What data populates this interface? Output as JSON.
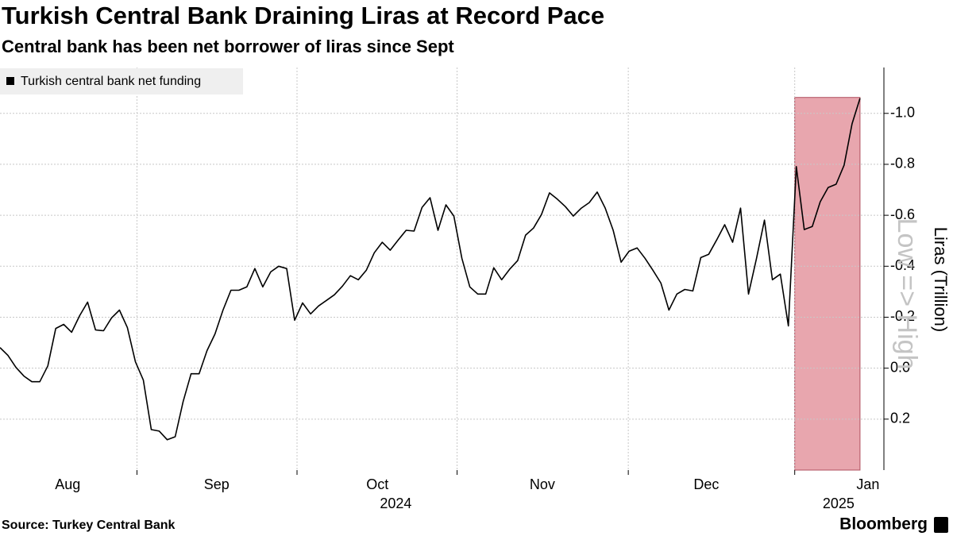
{
  "chart_data": {
    "type": "line",
    "title": "Turkish Central Bank Draining Liras at Record Pace",
    "subtitle": "Central bank has been net borrower of liras since Sept",
    "y_label": "Liras (Trillion)",
    "annotation": "Low => High",
    "source": "Source: Turkey Central Bank",
    "brand": "Bloomberg",
    "series": [
      {
        "name": "Turkish central bank net funding",
        "color": "#000000",
        "values": [
          -0.081,
          -0.05,
          -0.003,
          0.031,
          0.053,
          0.053,
          -0.009,
          -0.156,
          -0.172,
          -0.141,
          -0.206,
          -0.259,
          -0.15,
          -0.147,
          -0.197,
          -0.228,
          -0.159,
          -0.025,
          0.047,
          0.241,
          0.247,
          0.281,
          0.269,
          0.131,
          0.022,
          0.022,
          -0.069,
          -0.134,
          -0.228,
          -0.306,
          -0.306,
          -0.319,
          -0.391,
          -0.319,
          -0.378,
          -0.4,
          -0.391,
          -0.188,
          -0.256,
          -0.213,
          -0.244,
          -0.266,
          -0.288,
          -0.322,
          -0.363,
          -0.347,
          -0.384,
          -0.453,
          -0.494,
          -0.463,
          -0.503,
          -0.541,
          -0.538,
          -0.631,
          -0.669,
          -0.541,
          -0.641,
          -0.597,
          -0.431,
          -0.319,
          -0.291,
          -0.291,
          -0.394,
          -0.347,
          -0.388,
          -0.422,
          -0.522,
          -0.55,
          -0.603,
          -0.688,
          -0.663,
          -0.634,
          -0.597,
          -0.628,
          -0.65,
          -0.691,
          -0.628,
          -0.541,
          -0.416,
          -0.459,
          -0.472,
          -0.431,
          -0.384,
          -0.334,
          -0.228,
          -0.291,
          -0.309,
          -0.303,
          -0.434,
          -0.447,
          -0.503,
          -0.563,
          -0.494,
          -0.628,
          -0.291,
          -0.431,
          -0.581,
          -0.347,
          -0.369,
          -0.166,
          -0.791,
          -0.544,
          -0.556,
          -0.653,
          -0.709,
          -0.722,
          -0.797,
          -0.959,
          -1.059
        ]
      }
    ],
    "xlim": [
      0,
      111
    ],
    "xticks": [
      17.2,
      37.3,
      57.4,
      78.9,
      99.8
    ],
    "x_labels": [
      {
        "value": 8.5,
        "label": "Aug"
      },
      {
        "value": 27.2,
        "label": "Sep"
      },
      {
        "value": 47.4,
        "label": "Oct"
      },
      {
        "value": 68.1,
        "label": "Nov"
      },
      {
        "value": 88.7,
        "label": "Dec"
      },
      {
        "value": 109,
        "label": "Jan"
      }
    ],
    "year_labels": [
      {
        "value": 49.7,
        "label": "2024"
      },
      {
        "value": 105.3,
        "label": "2025"
      }
    ],
    "ylim": [
      -1.18,
      0.4
    ],
    "y_inverted": true,
    "yticks": [
      {
        "value": -1,
        "label": "-1.0"
      },
      -0.8,
      -0.6,
      -0.4,
      -0.2,
      {
        "value": 0,
        "label": "0.0"
      },
      0.2
    ],
    "grid": true,
    "highlight": {
      "x": [
        99.8,
        108
      ],
      "y": [
        -1.0625,
        0.4
      ],
      "color": "#e8a6ae",
      "border": "#b05060"
    },
    "legend": "top-left"
  }
}
